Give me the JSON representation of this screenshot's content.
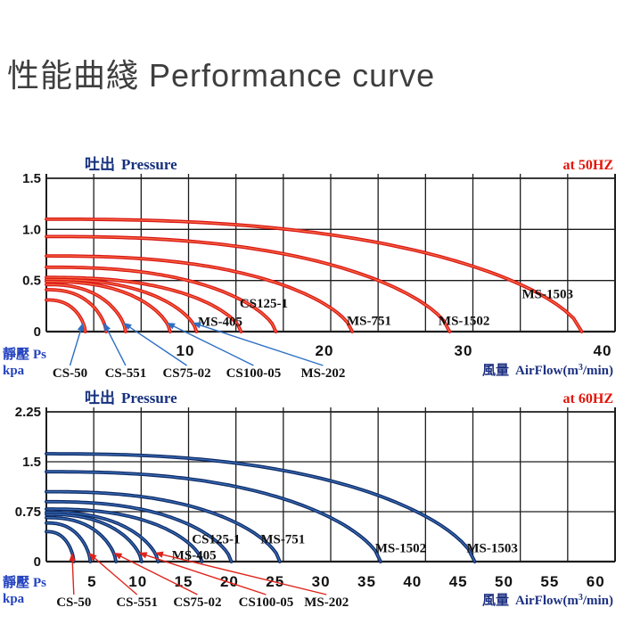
{
  "page_title": "性能曲綫 Performance curve",
  "colors": {
    "title": "#3e3e3e",
    "grid": "#1d1d1d",
    "header_navy": "#15307d",
    "freq_red": "#e31409",
    "axis_text": "#121212",
    "axis_caption_blue": "#2342c0",
    "xlabel_navy": "#1d3080",
    "curve_red": "#d9151a",
    "curve_red_glow": "#ff8a45",
    "curve_navy": "#0e2a63",
    "curve_navy_glow": "#4a86d8",
    "arrow_blue": "#2d6fc4",
    "arrow_red": "#df241b",
    "model_label": "#101010"
  },
  "chart_data": [
    {
      "type": "line",
      "id": "50hz",
      "title_zh": "吐出",
      "title_en": "Pressure",
      "freq_label": "at  50HZ",
      "pressure_axis": {
        "zh": "靜壓",
        "en": "Ps",
        "unit": "kpa"
      },
      "flow_axis": {
        "zh": "風量",
        "en_pre": "AirFlow(m",
        "sup": "3",
        "en_post": "/min)"
      },
      "x_ticks": [
        10,
        20,
        30,
        40
      ],
      "y_ticks": [
        "1.5",
        "1.0",
        "0.5",
        "0"
      ],
      "xlim": [
        0,
        40.9
      ],
      "ylim": [
        0,
        1.5
      ],
      "grid": true,
      "series": [
        {
          "name": "MS-1503",
          "shutoff_kpa": 1.1,
          "max_flow": 38.5
        },
        {
          "name": "MS-1502",
          "shutoff_kpa": 0.93,
          "max_flow": 29.0
        },
        {
          "name": "MS-751",
          "shutoff_kpa": 0.74,
          "max_flow": 22.0
        },
        {
          "name": "CS125-1",
          "shutoff_kpa": 0.63,
          "max_flow": 16.5
        },
        {
          "name": "MS-405",
          "shutoff_kpa": 0.53,
          "max_flow": 14.0
        },
        {
          "name": "MS-202",
          "shutoff_kpa": 0.51,
          "max_flow": 10.8
        },
        {
          "name": "CS100-05",
          "shutoff_kpa": 0.49,
          "max_flow": 8.9
        },
        {
          "name": "CS75-02",
          "shutoff_kpa": 0.46,
          "max_flow": 5.7
        },
        {
          "name": "CS-551",
          "shutoff_kpa": 0.41,
          "max_flow": 4.3
        },
        {
          "name": "CS-50",
          "shutoff_kpa": 0.31,
          "max_flow": 2.8
        }
      ],
      "inline_labels": [
        {
          "text": "MS-405",
          "x": 10.9,
          "y": 0.1
        },
        {
          "text": "CS125-1",
          "x": 13.9,
          "y": 0.28
        },
        {
          "text": "MS-751",
          "x": 21.6,
          "y": 0.11
        },
        {
          "text": "MS-1502",
          "x": 28.2,
          "y": 0.11
        },
        {
          "text": "MS-1503",
          "x": 34.2,
          "y": 0.37
        }
      ],
      "callout_labels": [
        {
          "text": "CS-50",
          "x": 1.7,
          "series": "CS-50"
        },
        {
          "text": "CS-551",
          "x": 5.7,
          "series": "CS-551"
        },
        {
          "text": "CS75-02",
          "x": 10.1,
          "series": "CS75-02"
        },
        {
          "text": "CS100-05",
          "x": 14.9,
          "series": "CS100-05"
        },
        {
          "text": "MS-202",
          "x": 19.9,
          "series": "MS-202"
        }
      ]
    },
    {
      "type": "line",
      "id": "60hz",
      "title_zh": "吐出",
      "title_en": "Pressure",
      "freq_label": "at  60HZ",
      "pressure_axis": {
        "zh": "靜壓",
        "en": "Ps",
        "unit": "kpa"
      },
      "flow_axis": {
        "zh": "風量",
        "en_pre": "AirFlow(m",
        "sup": "3",
        "en_post": "/min)"
      },
      "x_ticks": [
        5,
        10,
        15,
        20,
        25,
        30,
        35,
        40,
        45,
        50,
        55,
        60
      ],
      "y_ticks": [
        "2.25",
        "1.5",
        "0.75",
        "0"
      ],
      "xlim": [
        0,
        62
      ],
      "ylim": [
        0,
        2.25
      ],
      "grid": true,
      "series": [
        {
          "name": "MS-1503",
          "shutoff_kpa": 1.62,
          "max_flow": 46.8
        },
        {
          "name": "MS-1502",
          "shutoff_kpa": 1.35,
          "max_flow": 36.5
        },
        {
          "name": "MS-751",
          "shutoff_kpa": 1.05,
          "max_flow": 25.5
        },
        {
          "name": "CS125-1",
          "shutoff_kpa": 0.9,
          "max_flow": 20.2
        },
        {
          "name": "MS-405",
          "shutoff_kpa": 0.79,
          "max_flow": 17.0
        },
        {
          "name": "MS-202",
          "shutoff_kpa": 0.74,
          "max_flow": 12.2
        },
        {
          "name": "CS100-05",
          "shutoff_kpa": 0.71,
          "max_flow": 10.4
        },
        {
          "name": "CS75-02",
          "shutoff_kpa": 0.66,
          "max_flow": 7.6
        },
        {
          "name": "CS-551",
          "shutoff_kpa": 0.58,
          "max_flow": 4.8
        },
        {
          "name": "CS-50",
          "shutoff_kpa": 0.45,
          "max_flow": 3.0
        }
      ],
      "inline_labels": [
        {
          "text": "MS-405",
          "x": 13.7,
          "y": 0.1
        },
        {
          "text": "CS125-1",
          "x": 15.9,
          "y": 0.34
        },
        {
          "text": "MS-751",
          "x": 23.4,
          "y": 0.34
        },
        {
          "text": "MS-1502",
          "x": 35.9,
          "y": 0.21
        },
        {
          "text": "MS-1503",
          "x": 45.9,
          "y": 0.21
        }
      ],
      "callout_labels": [
        {
          "text": "CS-50",
          "x": 3.0,
          "series": "CS-50"
        },
        {
          "text": "CS-551",
          "x": 9.9,
          "series": "CS-551"
        },
        {
          "text": "CS75-02",
          "x": 16.5,
          "series": "CS75-02"
        },
        {
          "text": "CS100-05",
          "x": 24.0,
          "series": "CS100-05"
        },
        {
          "text": "MS-202",
          "x": 30.6,
          "series": "MS-202"
        }
      ]
    }
  ]
}
